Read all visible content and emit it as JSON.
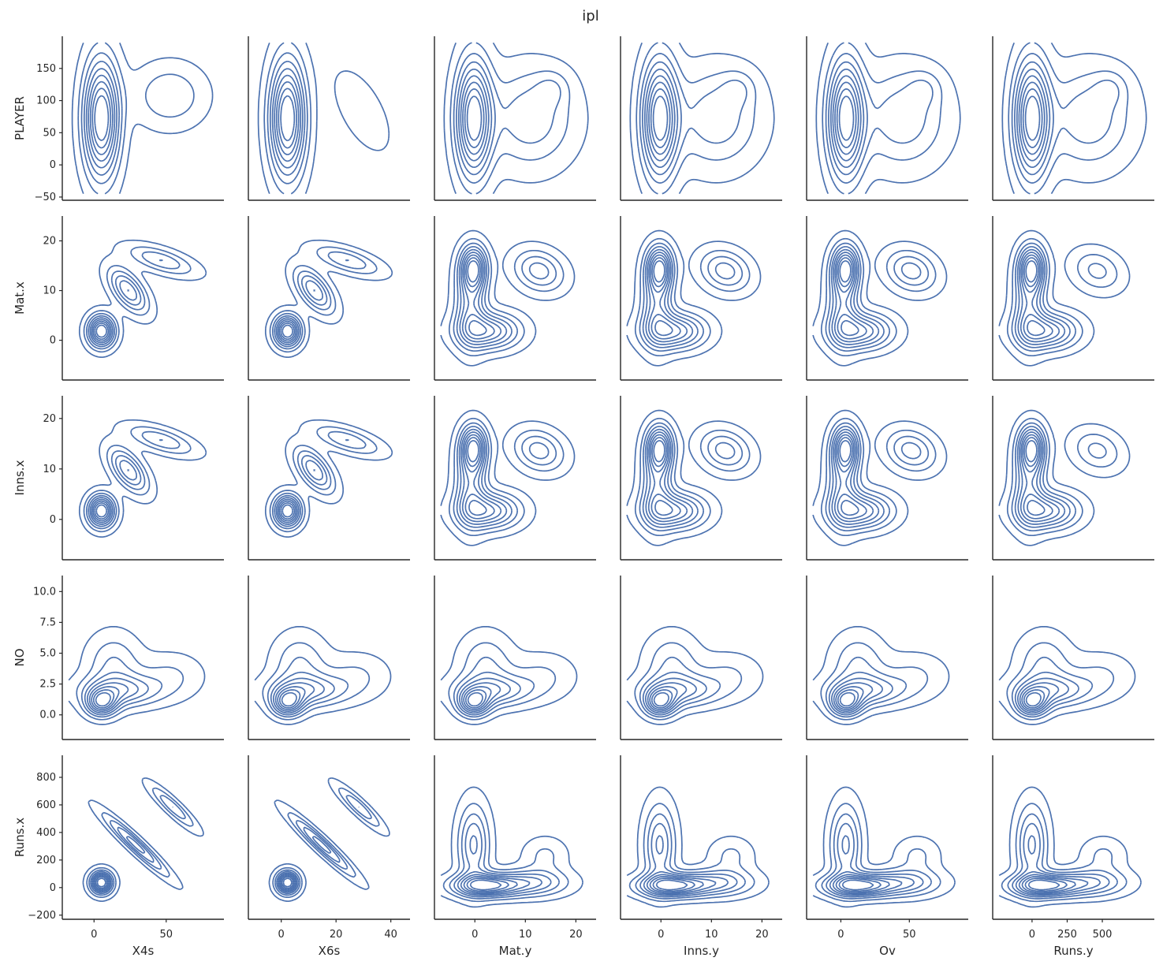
{
  "chart_data": {
    "type": "kde-contour-grid",
    "title": "ipl",
    "color": "#4c72b0",
    "grid": false,
    "columns": [
      {
        "label": "X4s",
        "xlim": [
          -22,
          90
        ],
        "ticks": [
          0,
          50
        ],
        "tick_labels": [
          "0",
          "50"
        ]
      },
      {
        "label": "X6s",
        "xlim": [
          -12,
          47
        ],
        "ticks": [
          0,
          20,
          40
        ],
        "tick_labels": [
          "0",
          "20",
          "40"
        ]
      },
      {
        "label": "Mat.y",
        "xlim": [
          -8,
          24
        ],
        "ticks": [
          0,
          10,
          20
        ],
        "tick_labels": [
          "0",
          "10",
          "20"
        ]
      },
      {
        "label": "Inns.y",
        "xlim": [
          -8,
          24
        ],
        "ticks": [
          0,
          10,
          20
        ],
        "tick_labels": [
          "0",
          "10",
          "20"
        ]
      },
      {
        "label": "Ov",
        "xlim": [
          -25,
          93
        ],
        "ticks": [
          0,
          50
        ],
        "tick_labels": [
          "0",
          "50"
        ]
      },
      {
        "label": "Runs.y",
        "xlim": [
          -280,
          870
        ],
        "ticks": [
          0,
          250,
          500
        ],
        "tick_labels": [
          "0",
          "250",
          "500"
        ]
      }
    ],
    "rows": [
      {
        "label": "PLAYER",
        "ylim": [
          -55,
          200
        ],
        "ticks": [
          -50,
          0,
          50,
          100,
          150
        ],
        "tick_labels": [
          "−50",
          "0",
          "50",
          "100",
          "150"
        ]
      },
      {
        "label": "Mat.x",
        "ylim": [
          -8,
          25
        ],
        "ticks": [
          0,
          10,
          20
        ],
        "tick_labels": [
          "0",
          "10",
          "20"
        ]
      },
      {
        "label": "Inns.x",
        "ylim": [
          -8,
          24.5
        ],
        "ticks": [
          0,
          10,
          20
        ],
        "tick_labels": [
          "0",
          "10",
          "20"
        ]
      },
      {
        "label": "NO",
        "ylim": [
          -2,
          11.3
        ],
        "ticks": [
          0,
          2.5,
          5,
          7.5,
          10
        ],
        "tick_labels": [
          "0.0",
          "2.5",
          "5.0",
          "7.5",
          "10.0"
        ]
      },
      {
        "label": "Runs.x",
        "ylim": [
          -230,
          960
        ],
        "ticks": [
          -200,
          0,
          200,
          400,
          600,
          800
        ],
        "tick_labels": [
          "−200",
          "0",
          "200",
          "400",
          "600",
          "800"
        ]
      }
    ]
  }
}
